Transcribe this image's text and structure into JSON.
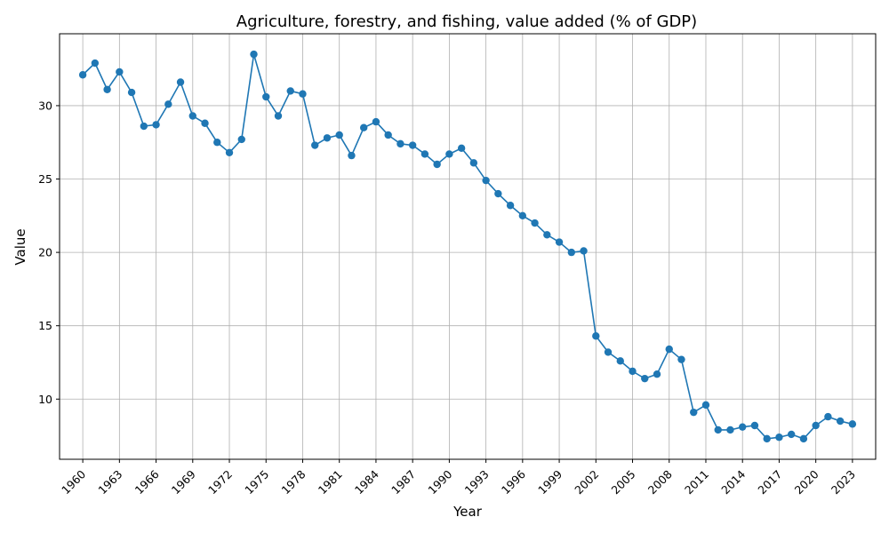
{
  "chart_data": {
    "type": "line",
    "title": "Agriculture, forestry, and fishing, value added (% of GDP)",
    "xlabel": "Year",
    "ylabel": "Value",
    "grid": true,
    "xlim": [
      1958.1,
      2024.9
    ],
    "ylim": [
      5.9,
      34.9
    ],
    "xticks": [
      "1960",
      "1963",
      "1966",
      "1969",
      "1972",
      "1975",
      "1978",
      "1981",
      "1984",
      "1987",
      "1990",
      "1993",
      "1996",
      "1999",
      "2002",
      "2005",
      "2008",
      "2011",
      "2014",
      "2017",
      "2020",
      "2023"
    ],
    "yticks": [
      10,
      15,
      20,
      25,
      30
    ],
    "x": [
      1960,
      1961,
      1962,
      1963,
      1964,
      1965,
      1966,
      1967,
      1968,
      1969,
      1970,
      1971,
      1972,
      1973,
      1974,
      1975,
      1976,
      1977,
      1978,
      1979,
      1980,
      1981,
      1982,
      1983,
      1984,
      1985,
      1986,
      1987,
      1988,
      1989,
      1990,
      1991,
      1992,
      1993,
      1994,
      1995,
      1996,
      1997,
      1998,
      1999,
      2000,
      2001,
      2002,
      2003,
      2004,
      2005,
      2006,
      2007,
      2008,
      2009,
      2010,
      2011,
      2012,
      2013,
      2014,
      2015,
      2016,
      2017,
      2018,
      2019,
      2020,
      2021,
      2022,
      2023
    ],
    "series": [
      {
        "values": [
          32.1,
          32.9,
          31.1,
          32.3,
          30.9,
          28.6,
          28.7,
          30.1,
          31.6,
          29.3,
          28.8,
          27.5,
          26.8,
          27.7,
          33.5,
          30.6,
          29.3,
          31.0,
          30.8,
          27.3,
          27.8,
          28.0,
          26.6,
          28.5,
          28.9,
          28.0,
          27.4,
          27.3,
          26.7,
          26.0,
          26.7,
          27.1,
          26.1,
          24.9,
          24.0,
          23.2,
          22.5,
          22.0,
          21.2,
          20.7,
          20.0,
          20.1,
          14.3,
          13.2,
          12.6,
          11.9,
          11.4,
          11.7,
          13.4,
          12.7,
          9.1,
          9.6,
          7.9,
          7.9,
          8.1,
          8.2,
          7.3,
          7.4,
          7.6,
          7.3,
          8.2,
          8.8,
          8.5,
          8.3
        ]
      }
    ]
  }
}
